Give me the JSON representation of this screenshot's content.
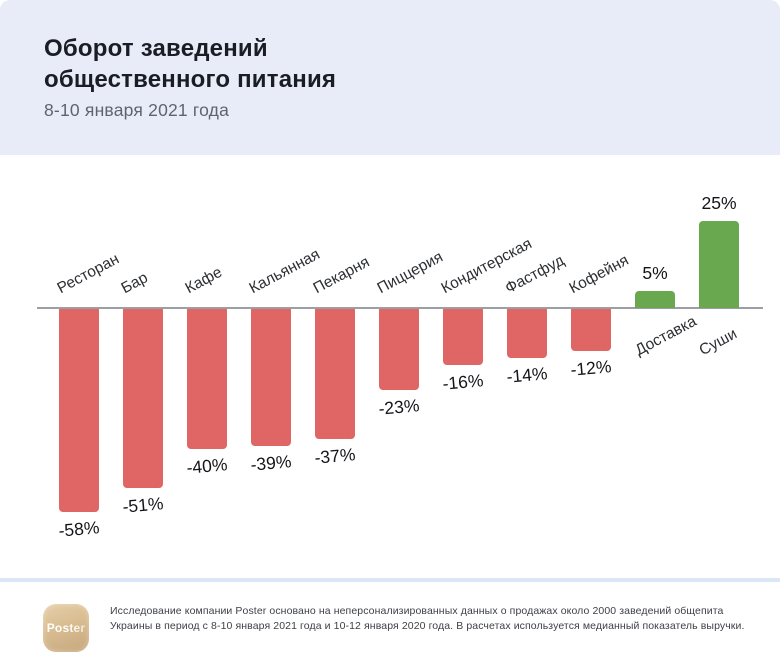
{
  "header": {
    "title": "Оборот заведений общественного питания",
    "subtitle": "8-10 января 2021 года"
  },
  "chart_data": {
    "type": "bar",
    "title": "Оборот заведений общественного питания",
    "subtitle": "8-10 января 2021 года",
    "unit": "%",
    "categories": [
      "Ресторан",
      "Бар",
      "Кафе",
      "Кальянная",
      "Пекарня",
      "Пиццерия",
      "Кондитерская",
      "Фастфуд",
      "Кофейня",
      "Доставка",
      "Суши"
    ],
    "values": [
      -58,
      -51,
      -40,
      -39,
      -37,
      -23,
      -16,
      -14,
      -12,
      5,
      25
    ],
    "labels": [
      "-58%",
      "-51%",
      "-40%",
      "-39%",
      "-37%",
      "-23%",
      "-16%",
      "-14%",
      "-12%",
      "5%",
      "25%"
    ],
    "ylim": [
      -60,
      30
    ],
    "grid": false,
    "legend": null,
    "negative_color": "#e06666",
    "positive_color": "#6aa84f",
    "axis_color": "#9b9fa4"
  },
  "footer": {
    "logo_text": "Poster",
    "note": "Исследование компании Poster основано на неперсонализированных данных о продажах около 2000 заведений общепита Украины в период с 8-10 января 2021 года и 10-12 января 2020 года. В расчетах используется медианный показатель выручки."
  },
  "colors": {
    "header_bg": "#e7ecf8",
    "title": "#1b1d25",
    "subtitle": "#5d6370",
    "separator": "#dbe7f7",
    "footer_text": "#3e4147"
  }
}
